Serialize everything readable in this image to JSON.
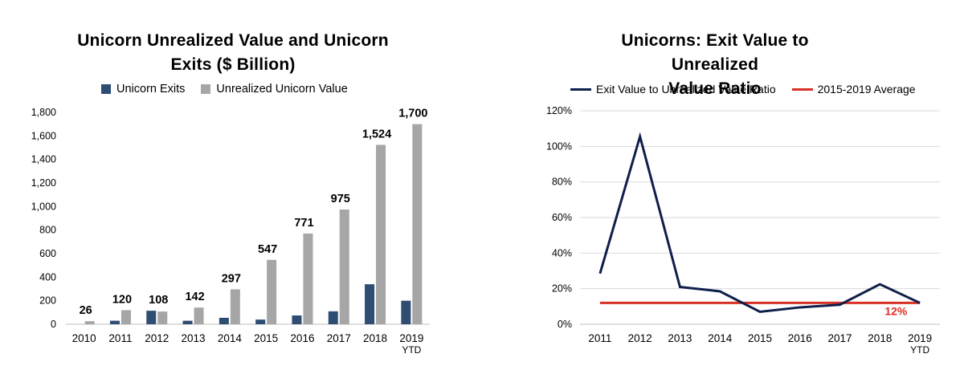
{
  "colors": {
    "exits": "#2e4d73",
    "unrealized": "#a6a6a6",
    "ratio": "#0f1f4b",
    "average": "#d93025",
    "grid": "#d9d9d9",
    "axis": "#bfbfbf"
  },
  "chart_data": [
    {
      "type": "bar",
      "title": "Unicorn Unrealized Value and Unicorn Exits ($ Billion)",
      "title_lines": [
        "Unicorn Unrealized Value and Unicorn",
        "Exits ($ Billion)"
      ],
      "categories": [
        "2010",
        "2011",
        "2012",
        "2013",
        "2014",
        "2015",
        "2016",
        "2017",
        "2018",
        "2019"
      ],
      "category_sublabels": [
        "",
        "",
        "",
        "",
        "",
        "",
        "",
        "",
        "",
        "YTD"
      ],
      "series": [
        {
          "name": "Unicorn Exits",
          "values": [
            0,
            30,
            115,
            30,
            55,
            40,
            75,
            110,
            340,
            200
          ]
        },
        {
          "name": "Unrealized Unicorn Value",
          "values": [
            26,
            120,
            108,
            142,
            297,
            547,
            771,
            975,
            1524,
            1700
          ]
        }
      ],
      "data_labels": [
        "26",
        "120",
        "108",
        "142",
        "297",
        "547",
        "771",
        "975",
        "1,524",
        "1,700"
      ],
      "y_ticks": [
        "0",
        "200",
        "400",
        "600",
        "800",
        "1,000",
        "1,200",
        "1,400",
        "1,600",
        "1,800"
      ],
      "ylim": [
        0,
        1800
      ],
      "grid": false,
      "legend_position": "top"
    },
    {
      "type": "line",
      "title": "Unicorns: Exit Value to Unrealized Value Ratio",
      "title_lines": [
        "Unicorns: Exit Value to Unrealized",
        "Value Ratio"
      ],
      "categories": [
        "2011",
        "2012",
        "2013",
        "2014",
        "2015",
        "2016",
        "2017",
        "2018",
        "2019"
      ],
      "category_sublabels": [
        "",
        "",
        "",
        "",
        "",
        "",
        "",
        "",
        "YTD"
      ],
      "series": [
        {
          "name": "Exit Value to Unrealized Value Ratio",
          "values": [
            28.5,
            105.5,
            21,
            18.5,
            7,
            9.5,
            11,
            22.5,
            12
          ]
        },
        {
          "name": "2015-2019 Average",
          "values": [
            12,
            12,
            12,
            12,
            12,
            12,
            12,
            12,
            12
          ]
        }
      ],
      "average_label": "12%",
      "y_ticks": [
        "0%",
        "20%",
        "40%",
        "60%",
        "80%",
        "100%",
        "120%"
      ],
      "ylim": [
        0,
        120
      ],
      "grid": true,
      "legend_position": "top"
    }
  ]
}
